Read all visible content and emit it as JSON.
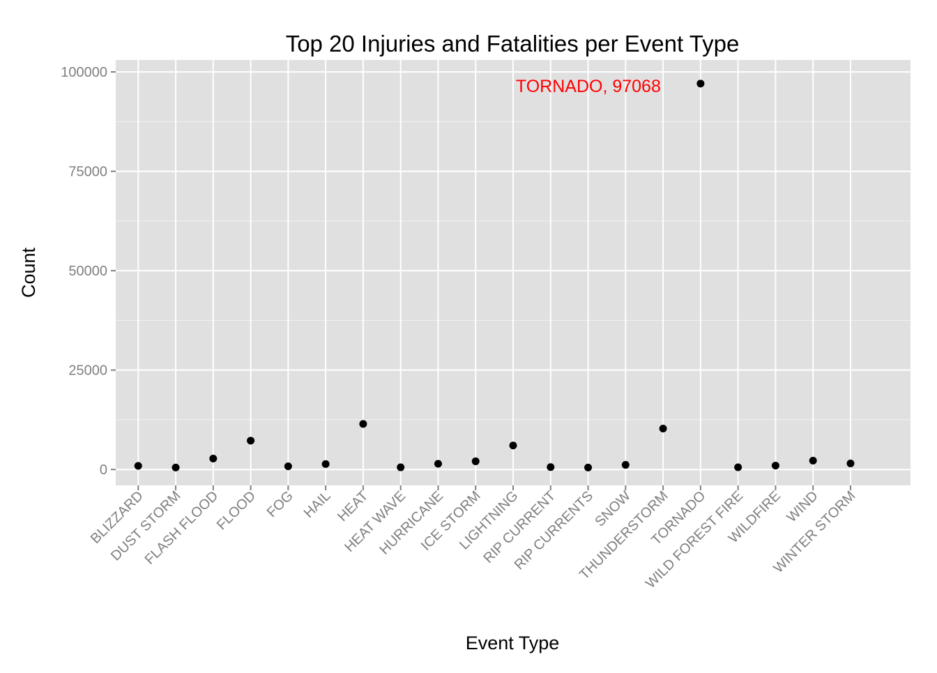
{
  "chart_data": {
    "type": "scatter",
    "title": "Top 20 Injuries and Fatalities per Event Type",
    "xlabel": "Event Type",
    "ylabel": "Count",
    "categories": [
      "BLIZZARD",
      "DUST STORM",
      "FLASH FLOOD",
      "FLOOD",
      "FOG",
      "HAIL",
      "HEAT",
      "HEAT WAVE",
      "HURRICANE",
      "ICE STORM",
      "LIGHTNING",
      "RIP CURRENT",
      "RIP CURRENTS",
      "SNOW",
      "THUNDERSTORM",
      "TORNADO",
      "WILD FOREST FIRE",
      "WILDFIRE",
      "WIND",
      "WINTER STORM"
    ],
    "values": [
      906,
      502,
      2755,
      7259,
      796,
      1376,
      11462,
      551,
      1446,
      2064,
      6046,
      600,
      501,
      1164,
      10292,
      97068,
      557,
      986,
      2226,
      1527
    ],
    "ylim": [
      -4000,
      103000
    ],
    "yticks": [
      0,
      25000,
      50000,
      75000,
      100000
    ],
    "ytick_labels": [
      "0",
      "25000",
      "50000",
      "75000",
      "100000"
    ],
    "grid": true,
    "background": "#e0e0e0",
    "point_color": "#000000",
    "annotation": {
      "text": "TORNADO, 97068",
      "category": "TORNADO",
      "value": 97068,
      "color": "#ff0000"
    }
  }
}
